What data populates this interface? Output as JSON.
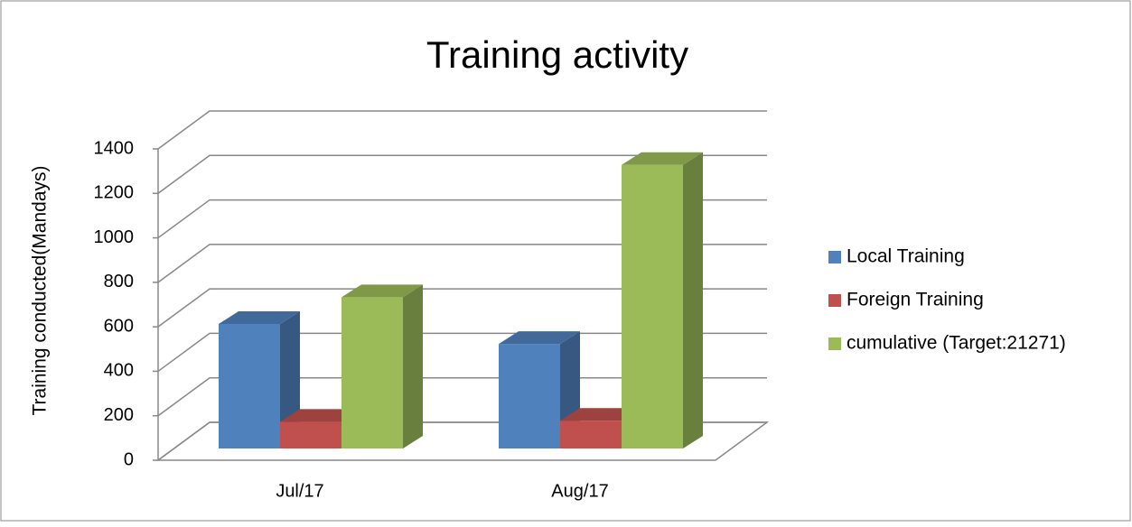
{
  "chart_data": {
    "type": "bar3d",
    "title": "Training activity",
    "y_axis_label": "Training conducted(Mandays)",
    "categories": [
      "Jul/17",
      "Aug/17"
    ],
    "series": [
      {
        "name": "Local Training",
        "color": "#4f81bd",
        "values": [
          560,
          470
        ]
      },
      {
        "name": "Foreign Training",
        "color": "#c0504d",
        "values": [
          120,
          125
        ]
      },
      {
        "name": "cumulative (Target:21271)",
        "color": "#9bbb59",
        "values": [
          680,
          1275
        ]
      }
    ],
    "ylim": [
      0,
      1400
    ],
    "yticks": [
      0,
      200,
      400,
      600,
      800,
      1000,
      1200,
      1400
    ],
    "grid": true,
    "legend": "right"
  }
}
